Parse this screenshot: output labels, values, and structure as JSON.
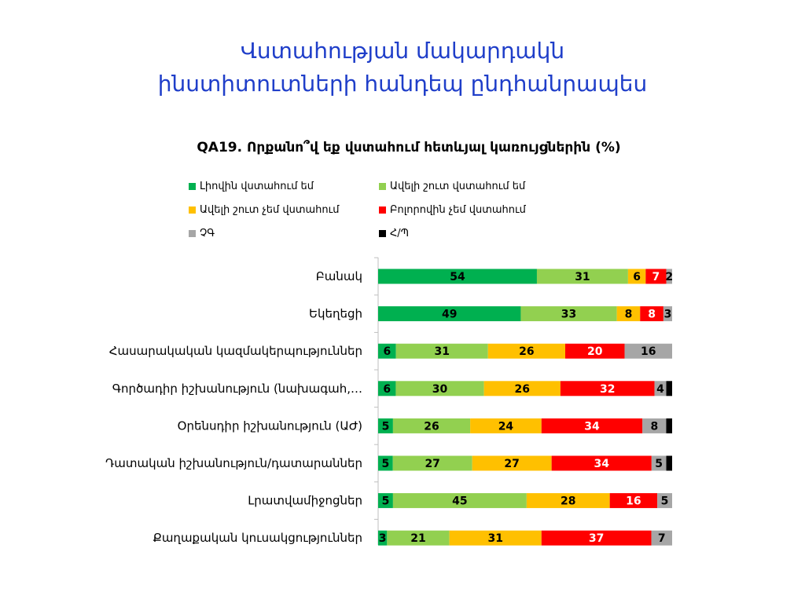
{
  "slide": {
    "title_line1": "Վստահության մակարդակն",
    "title_line2": "ինստիտուտների հանդեպ  ընդհանրապես"
  },
  "chart_data": {
    "type": "bar",
    "orientation": "horizontal-stacked-100",
    "title": "QA19. Որքանո՞վ եք վստահում հետևյալ կառույցներին (%)",
    "legend_position": "top",
    "categories": [
      "Բանակ",
      "Եկեղեցի",
      "Հասարակական կազմակերպություններ",
      "Գործադիր իշխանություն (նախագահ,…",
      "Օրենսդիր իշխանություն (ԱԺ)",
      "Դատական իշխանություն/դատարաններ",
      "Լրատվամիջոցներ",
      "Քաղաքական կուսակցություններ"
    ],
    "series": [
      {
        "name": "Լիովին վստահում եմ",
        "color": "#00b050",
        "label_color": "#000000",
        "values": [
          54,
          49,
          6,
          6,
          5,
          5,
          5,
          3
        ]
      },
      {
        "name": "Ավելի շուտ վստահում եմ",
        "color": "#92d050",
        "label_color": "#000000",
        "values": [
          31,
          33,
          31,
          30,
          26,
          27,
          45,
          21
        ]
      },
      {
        "name": "Ավելի շուտ չեմ վստահում",
        "color": "#ffc000",
        "label_color": "#000000",
        "values": [
          6,
          8,
          26,
          26,
          24,
          27,
          28,
          31
        ]
      },
      {
        "name": "Բոլորովին չեմ վստահում",
        "color": "#ff0000",
        "label_color": "#ffffff",
        "values": [
          7,
          8,
          20,
          32,
          34,
          34,
          16,
          37
        ]
      },
      {
        "name": "ՉԳ",
        "color": "#a6a6a6",
        "label_color": "#000000",
        "values": [
          2,
          3,
          16,
          4,
          8,
          5,
          5,
          7
        ]
      },
      {
        "name": "Հ/Պ",
        "color": "#000000",
        "label_color": "#000000",
        "values": [
          0,
          0,
          0,
          2,
          2,
          2,
          0,
          0
        ]
      }
    ]
  }
}
